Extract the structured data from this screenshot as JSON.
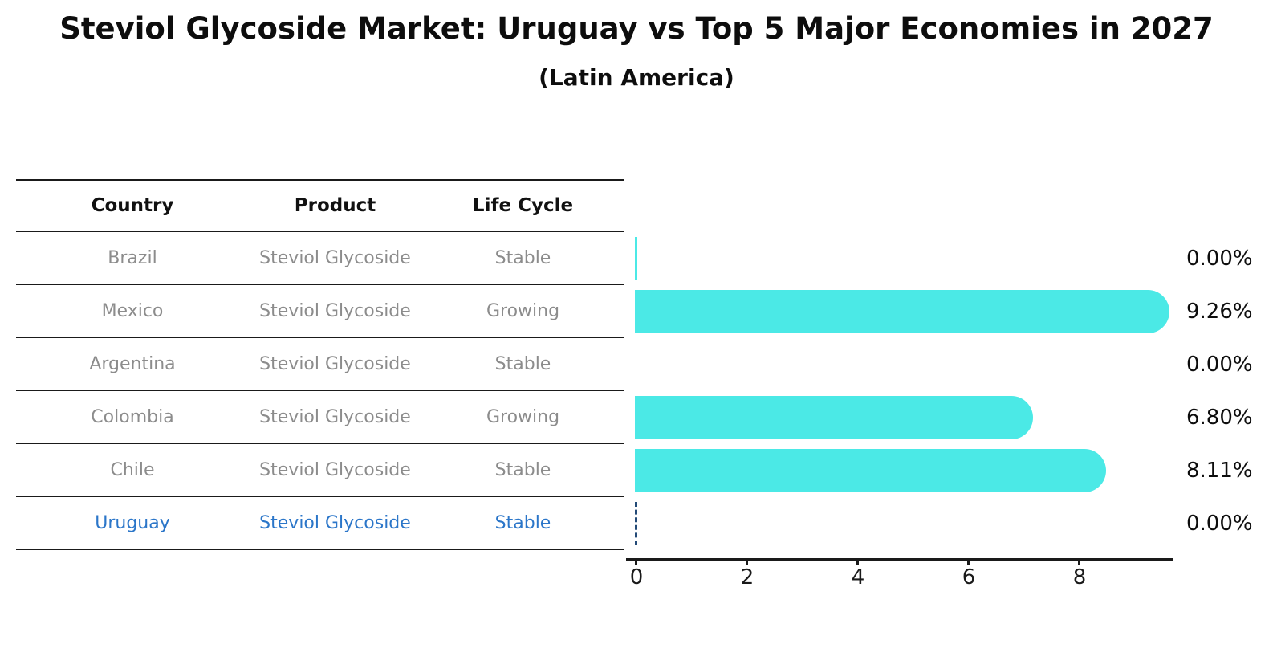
{
  "title": "Steviol Glycoside Market: Uruguay vs Top 5 Major Economies in 2027",
  "subtitle": "(Latin America)",
  "table": {
    "headers": [
      "Country",
      "Product",
      "Life Cycle"
    ],
    "rows": [
      {
        "country": "Brazil",
        "product": "Steviol Glycoside",
        "life_cycle": "Stable",
        "highlight": false
      },
      {
        "country": "Mexico",
        "product": "Steviol Glycoside",
        "life_cycle": "Growing",
        "highlight": false
      },
      {
        "country": "Argentina",
        "product": "Steviol Glycoside",
        "life_cycle": "Stable",
        "highlight": false
      },
      {
        "country": "Colombia",
        "product": "Steviol Glycoside",
        "life_cycle": "Growing",
        "highlight": false
      },
      {
        "country": "Chile",
        "product": "Steviol Glycoside",
        "life_cycle": "Stable",
        "highlight": false
      },
      {
        "country": "Uruguay",
        "product": "Steviol Glycoside",
        "life_cycle": "Stable",
        "highlight": true
      }
    ]
  },
  "chart_data": {
    "type": "bar",
    "orientation": "horizontal",
    "title": "Steviol Glycoside Market: Uruguay vs Top 5 Major Economies in 2027",
    "subtitle": "(Latin America)",
    "categories": [
      "Brazil",
      "Mexico",
      "Argentina",
      "Colombia",
      "Chile",
      "Uruguay"
    ],
    "values": [
      0.0,
      9.26,
      0.0,
      6.8,
      8.11,
      0.0
    ],
    "value_labels": [
      "0.00%",
      "9.26%",
      "0.00%",
      "6.80%",
      "8.11%",
      "0.00%"
    ],
    "bar_styles": [
      "sliver",
      "bar",
      "none",
      "bar",
      "bar",
      "dashed-marker"
    ],
    "xlabel": "",
    "ylabel": "",
    "xlim": [
      0,
      9.7
    ],
    "xticks": [
      0,
      2,
      4,
      6,
      8
    ],
    "grid": false,
    "legend": false,
    "colors": {
      "bar": "#4BE9E6",
      "highlight_text": "#2b76c9",
      "table_text": "#8c8c8c",
      "header_text": "#111111",
      "uruguay_marker": "#234a77",
      "axis": "#1a1a1a"
    }
  }
}
